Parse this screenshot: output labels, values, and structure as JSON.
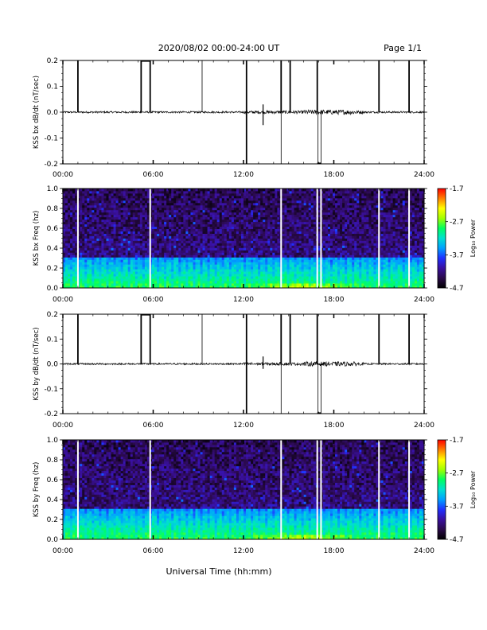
{
  "header": {
    "title": "2020/08/02  00:00-24:00 UT",
    "page": "Page 1/1"
  },
  "xaxis": {
    "label": "Universal Time (hh:mm)",
    "ticks": [
      "00:00",
      "06:00",
      "12:00",
      "18:00",
      "24:00"
    ],
    "range_hours": [
      0,
      24
    ]
  },
  "colors": {
    "colormap": [
      "#000000",
      "#2a0a4a",
      "#3a10a0",
      "#2030ff",
      "#00a0ff",
      "#00e0d0",
      "#00ff60",
      "#a0ff00",
      "#ffff00",
      "#ff8000",
      "#ff0000"
    ],
    "gap": "#ffffff",
    "trace": "#000000"
  },
  "chart_data": [
    {
      "type": "line",
      "ylabel": "KSS bx dB/dt (nT/sec)",
      "ylim": [
        -0.2,
        0.2
      ],
      "yticks": [
        "0.2",
        "0.1",
        "0.0",
        "-0.1",
        "-0.2"
      ],
      "baseline": 0.0,
      "spike_up_hours": [
        1.0,
        5.2,
        5.8,
        12.2,
        14.5,
        15.1,
        16.9,
        21.0,
        23.0
      ],
      "spike_thin_up_hours": [
        9.25
      ],
      "spike_down_hours": [
        12.2,
        14.5,
        16.95,
        17.15
      ],
      "noise_bursts": [
        {
          "hour": 13.3,
          "value": 0.03
        },
        {
          "hour": 13.3,
          "value": -0.05
        }
      ]
    },
    {
      "type": "heatmap",
      "ylabel": "KSS bx Freq (hz)",
      "ylim": [
        0.0,
        1.0
      ],
      "yticks": [
        "1.0",
        "0.8",
        "0.6",
        "0.4",
        "0.2",
        "0.0"
      ],
      "colorbar": {
        "label": "Log₁₀ Power",
        "ticks": [
          "-1.7",
          "-2.7",
          "-3.7",
          "-4.7"
        ],
        "range": [
          -4.7,
          -1.7
        ]
      },
      "gap_hours": [
        1.0,
        5.8,
        14.5,
        16.9,
        17.15,
        21.0,
        23.0
      ],
      "low_freq_band_hz": 0.3,
      "enhanced_interval_hours": [
        12.0,
        20.0
      ]
    },
    {
      "type": "line",
      "ylabel": "KSS by dB/dt (nT/sec)",
      "ylim": [
        -0.2,
        0.2
      ],
      "yticks": [
        "0.2",
        "0.1",
        "0.0",
        "-0.1",
        "-0.2"
      ],
      "baseline": 0.0,
      "spike_up_hours": [
        1.0,
        5.2,
        5.8,
        12.2,
        14.5,
        15.1,
        16.9,
        21.0,
        23.0
      ],
      "spike_thin_up_hours": [
        9.25
      ],
      "spike_down_hours": [
        12.2,
        14.5,
        16.95,
        17.15
      ],
      "noise_bursts": [
        {
          "hour": 13.3,
          "value": 0.03
        },
        {
          "hour": 13.3,
          "value": -0.02
        }
      ]
    },
    {
      "type": "heatmap",
      "ylabel": "KSS by Freq (hz)",
      "ylim": [
        0.0,
        1.0
      ],
      "yticks": [
        "1.0",
        "0.8",
        "0.6",
        "0.4",
        "0.2",
        "0.0"
      ],
      "colorbar": {
        "label": "Log₁₀ Power",
        "ticks": [
          "-1.7",
          "-2.7",
          "-3.7",
          "-4.7"
        ],
        "range": [
          -4.7,
          -1.7
        ]
      },
      "gap_hours": [
        1.0,
        5.8,
        14.5,
        16.9,
        17.15,
        21.0,
        23.0
      ],
      "low_freq_band_hz": 0.3,
      "enhanced_interval_hours": [
        12.0,
        20.0
      ]
    }
  ]
}
